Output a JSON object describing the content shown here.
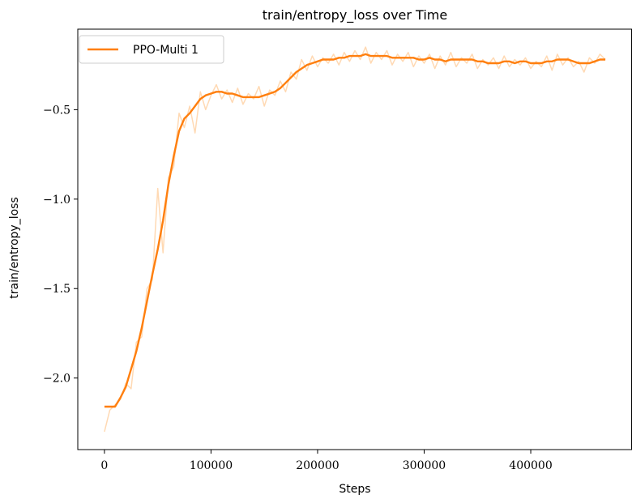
{
  "chart_data": {
    "type": "line",
    "title": "train/entropy_loss over Time",
    "xlabel": "Steps",
    "ylabel": "train/entropy_loss",
    "xlim": [
      -25000,
      495000
    ],
    "ylim": [
      -2.4,
      -0.05
    ],
    "xticks": [
      0,
      100000,
      200000,
      300000,
      400000
    ],
    "xtick_labels": [
      "0",
      "100000",
      "200000",
      "300000",
      "400000"
    ],
    "yticks": [
      -2.0,
      -1.5,
      -1.0,
      -0.5
    ],
    "ytick_labels": [
      "−2.0",
      "−1.5",
      "−1.0",
      "−0.5"
    ],
    "grid": false,
    "legend": {
      "placement": "top-left",
      "entries": [
        "PPO-Multi 1"
      ]
    },
    "colors": {
      "smoothed": "#ff7f0e",
      "raw": "#ffd9b3"
    },
    "series": [
      {
        "name": "PPO-Multi 1",
        "style": "smoothed",
        "x": [
          0,
          5000,
          10000,
          15000,
          20000,
          25000,
          30000,
          35000,
          40000,
          45000,
          50000,
          55000,
          60000,
          65000,
          70000,
          75000,
          80000,
          85000,
          90000,
          95000,
          100000,
          105000,
          110000,
          115000,
          120000,
          125000,
          130000,
          135000,
          140000,
          145000,
          150000,
          155000,
          160000,
          165000,
          170000,
          175000,
          180000,
          185000,
          190000,
          195000,
          200000,
          205000,
          210000,
          215000,
          220000,
          225000,
          230000,
          235000,
          240000,
          245000,
          250000,
          255000,
          260000,
          265000,
          270000,
          275000,
          280000,
          285000,
          290000,
          295000,
          300000,
          305000,
          310000,
          315000,
          320000,
          325000,
          330000,
          335000,
          340000,
          345000,
          350000,
          355000,
          360000,
          365000,
          370000,
          375000,
          380000,
          385000,
          390000,
          395000,
          400000,
          405000,
          410000,
          415000,
          420000,
          425000,
          430000,
          435000,
          440000,
          445000,
          450000,
          455000,
          460000,
          465000,
          470000
        ],
        "y": [
          -2.16,
          -2.16,
          -2.16,
          -2.11,
          -2.05,
          -1.95,
          -1.85,
          -1.72,
          -1.57,
          -1.42,
          -1.28,
          -1.12,
          -0.92,
          -0.76,
          -0.62,
          -0.55,
          -0.52,
          -0.48,
          -0.44,
          -0.42,
          -0.41,
          -0.4,
          -0.4,
          -0.41,
          -0.41,
          -0.42,
          -0.43,
          -0.43,
          -0.43,
          -0.43,
          -0.42,
          -0.41,
          -0.4,
          -0.38,
          -0.35,
          -0.32,
          -0.29,
          -0.27,
          -0.25,
          -0.24,
          -0.23,
          -0.22,
          -0.22,
          -0.22,
          -0.21,
          -0.21,
          -0.2,
          -0.2,
          -0.2,
          -0.19,
          -0.2,
          -0.2,
          -0.2,
          -0.2,
          -0.21,
          -0.21,
          -0.21,
          -0.21,
          -0.21,
          -0.22,
          -0.22,
          -0.21,
          -0.22,
          -0.22,
          -0.23,
          -0.22,
          -0.22,
          -0.22,
          -0.22,
          -0.22,
          -0.23,
          -0.23,
          -0.24,
          -0.24,
          -0.24,
          -0.23,
          -0.23,
          -0.24,
          -0.23,
          -0.23,
          -0.24,
          -0.24,
          -0.24,
          -0.23,
          -0.23,
          -0.22,
          -0.22,
          -0.22,
          -0.23,
          -0.24,
          -0.24,
          -0.24,
          -0.23,
          -0.22,
          -0.22
        ]
      },
      {
        "name": "PPO-Multi 1 (raw)",
        "style": "raw",
        "x": [
          0,
          5000,
          10000,
          15000,
          20000,
          25000,
          30000,
          35000,
          40000,
          45000,
          50000,
          55000,
          60000,
          65000,
          70000,
          75000,
          80000,
          85000,
          90000,
          95000,
          100000,
          105000,
          110000,
          115000,
          120000,
          125000,
          130000,
          135000,
          140000,
          145000,
          150000,
          155000,
          160000,
          165000,
          170000,
          175000,
          180000,
          185000,
          190000,
          195000,
          200000,
          205000,
          210000,
          215000,
          220000,
          225000,
          230000,
          235000,
          240000,
          245000,
          250000,
          255000,
          260000,
          265000,
          270000,
          275000,
          280000,
          285000,
          290000,
          295000,
          300000,
          305000,
          310000,
          315000,
          320000,
          325000,
          330000,
          335000,
          340000,
          345000,
          350000,
          355000,
          360000,
          365000,
          370000,
          375000,
          380000,
          385000,
          390000,
          395000,
          400000,
          405000,
          410000,
          415000,
          420000,
          425000,
          430000,
          435000,
          440000,
          445000,
          450000,
          455000,
          460000,
          465000,
          470000
        ],
        "y": [
          -2.3,
          -2.18,
          -2.15,
          -2.12,
          -2.03,
          -2.06,
          -1.8,
          -1.77,
          -1.5,
          -1.45,
          -0.94,
          -1.3,
          -0.88,
          -0.82,
          -0.52,
          -0.6,
          -0.48,
          -0.63,
          -0.4,
          -0.5,
          -0.42,
          -0.36,
          -0.44,
          -0.39,
          -0.46,
          -0.38,
          -0.47,
          -0.41,
          -0.44,
          -0.37,
          -0.48,
          -0.39,
          -0.42,
          -0.34,
          -0.4,
          -0.29,
          -0.33,
          -0.22,
          -0.28,
          -0.2,
          -0.26,
          -0.21,
          -0.24,
          -0.19,
          -0.25,
          -0.18,
          -0.23,
          -0.17,
          -0.22,
          -0.15,
          -0.24,
          -0.18,
          -0.22,
          -0.17,
          -0.25,
          -0.19,
          -0.23,
          -0.18,
          -0.26,
          -0.2,
          -0.24,
          -0.19,
          -0.27,
          -0.2,
          -0.25,
          -0.18,
          -0.26,
          -0.21,
          -0.24,
          -0.19,
          -0.27,
          -0.22,
          -0.25,
          -0.21,
          -0.27,
          -0.2,
          -0.26,
          -0.22,
          -0.25,
          -0.21,
          -0.27,
          -0.23,
          -0.26,
          -0.2,
          -0.28,
          -0.19,
          -0.25,
          -0.21,
          -0.26,
          -0.23,
          -0.29,
          -0.21,
          -0.24,
          -0.19,
          -0.22
        ]
      }
    ]
  }
}
